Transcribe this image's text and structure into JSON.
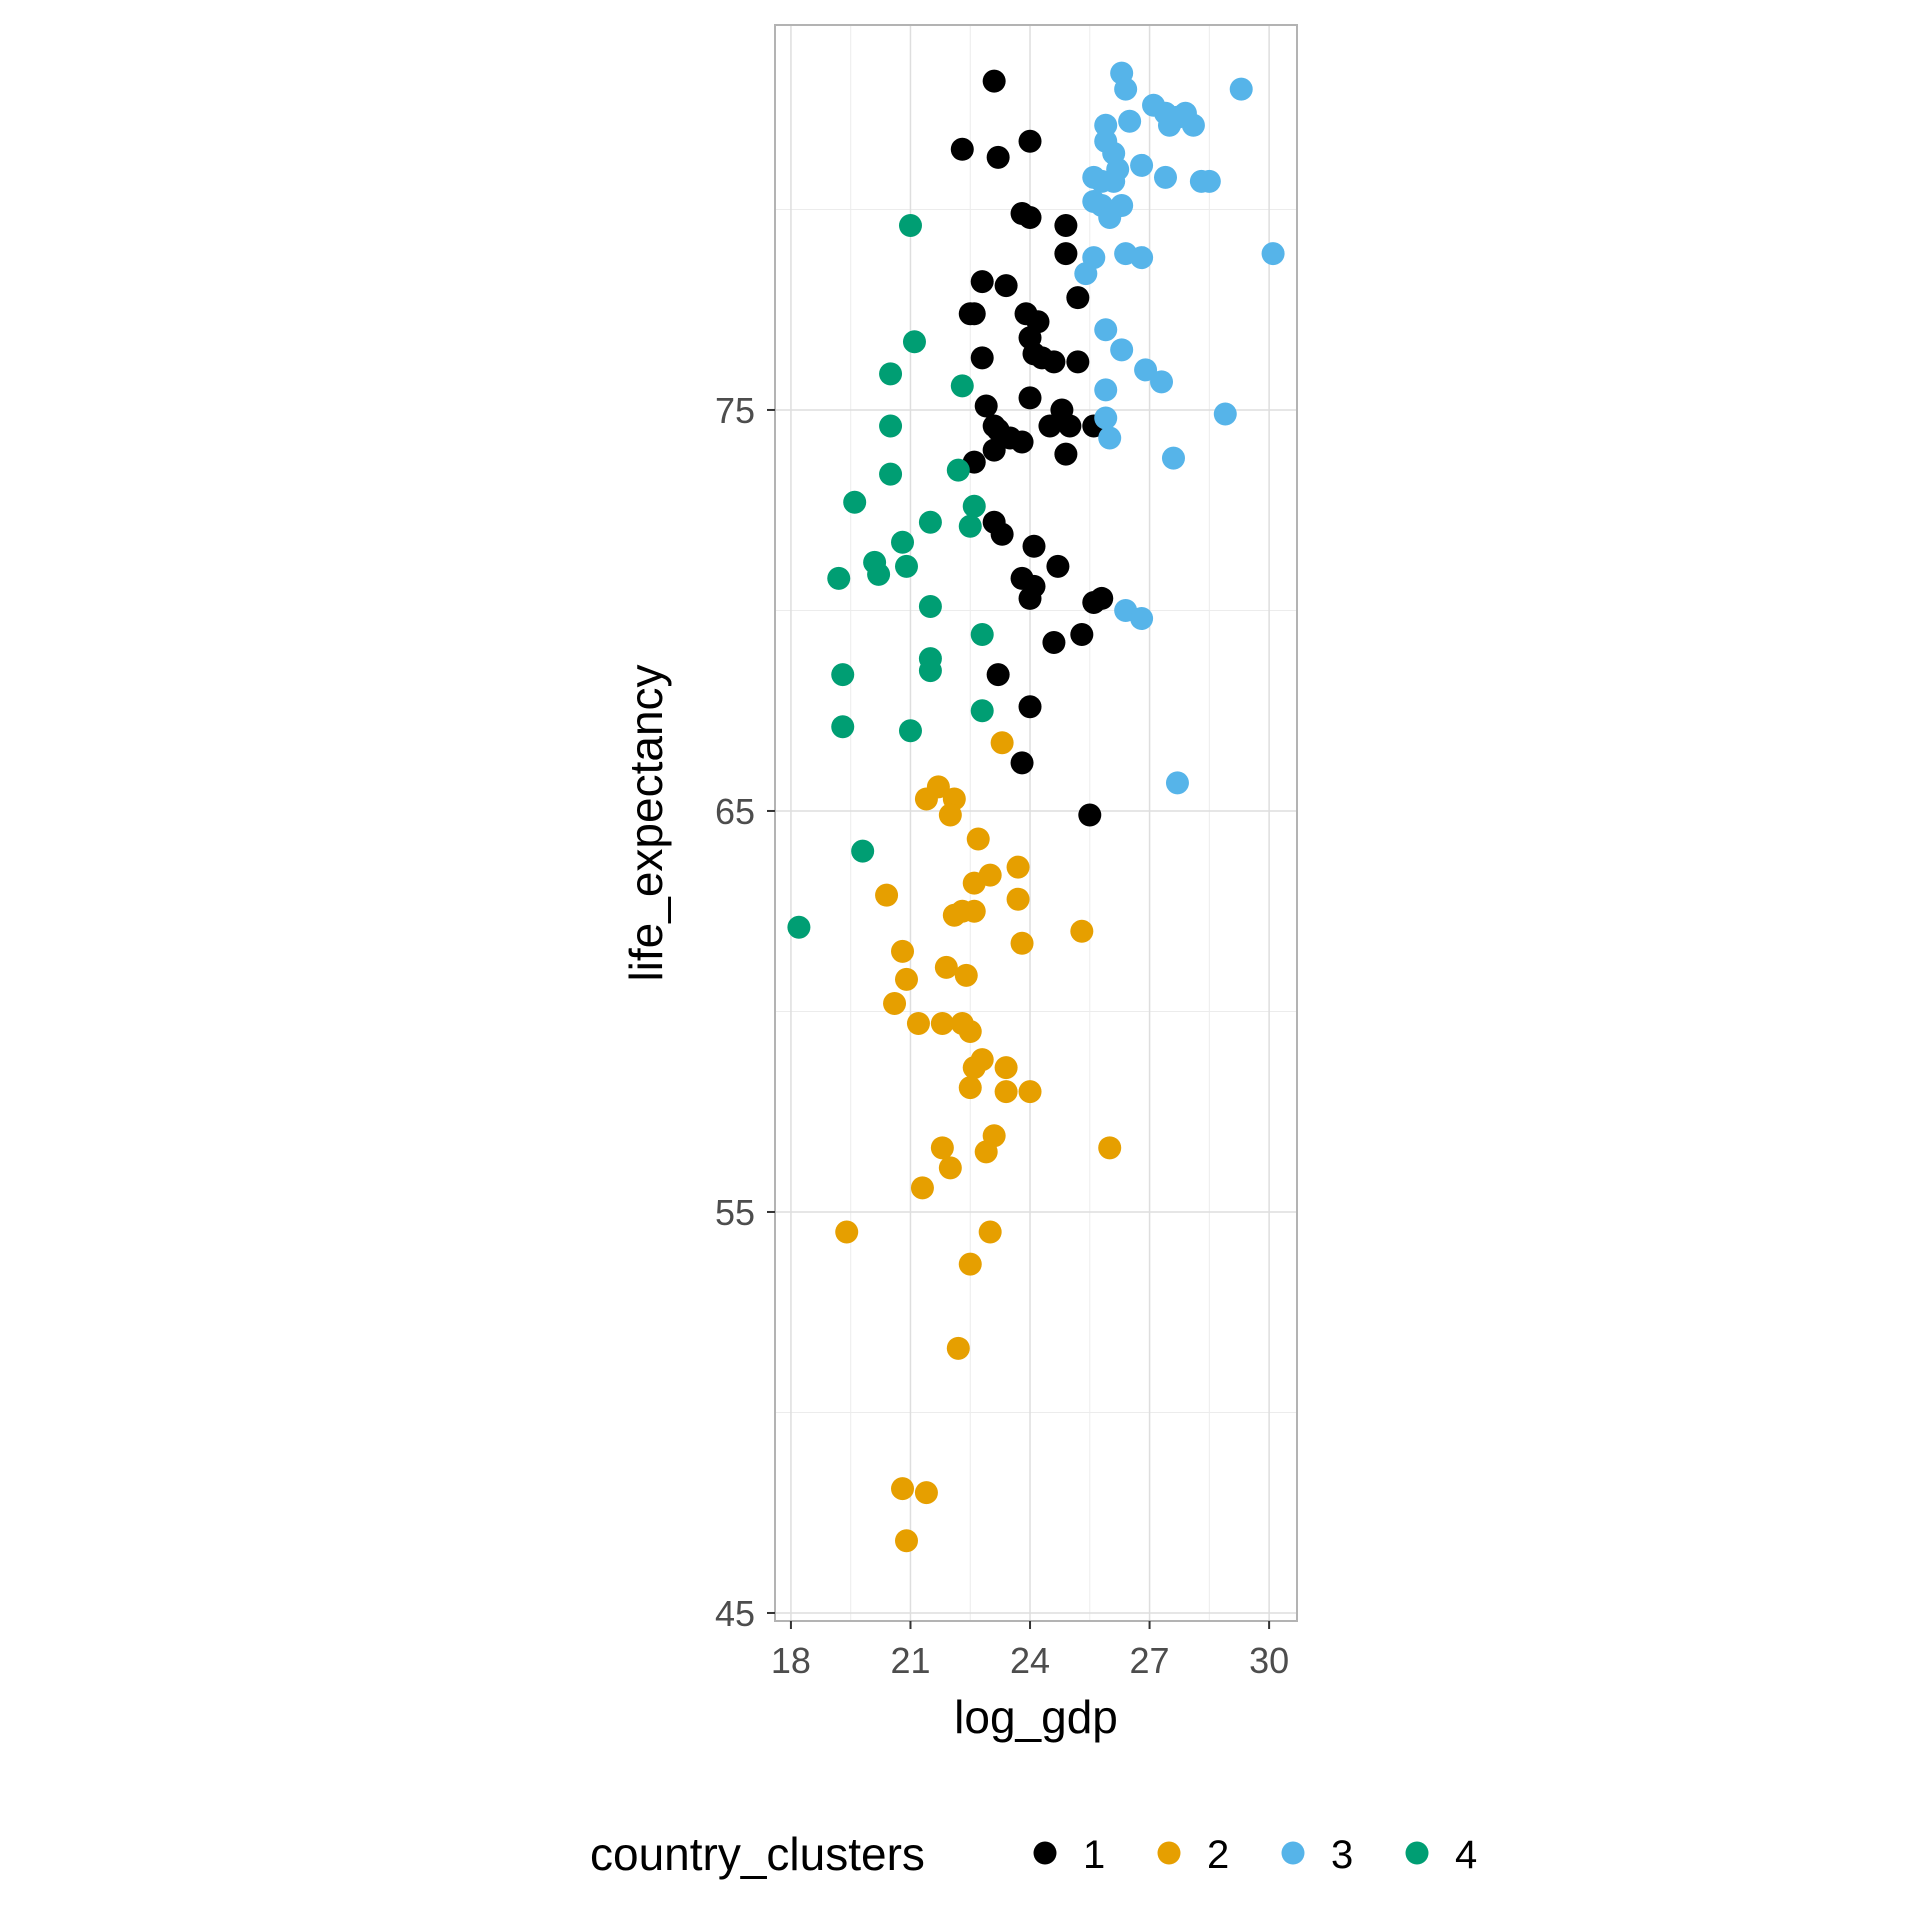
{
  "chart_data": {
    "type": "scatter",
    "title": "",
    "xlabel": "log_gdp",
    "ylabel": "life_expectancy",
    "xlim": [
      17.6,
      30.7
    ],
    "ylim": [
      44.8,
      84.6
    ],
    "x_ticks": [
      18,
      21,
      24,
      27,
      30
    ],
    "y_ticks": [
      45,
      55,
      65,
      75
    ],
    "grid": true,
    "legend": {
      "title": "country_clusters",
      "position": "bottom"
    },
    "series": [
      {
        "name": "1",
        "color": "#000000",
        "points": [
          [
            23.1,
            83.2
          ],
          [
            22.3,
            81.5
          ],
          [
            23.2,
            81.3
          ],
          [
            24.0,
            81.7
          ],
          [
            23.8,
            79.9
          ],
          [
            24.0,
            79.8
          ],
          [
            24.9,
            79.6
          ],
          [
            24.9,
            78.9
          ],
          [
            22.8,
            78.2
          ],
          [
            23.4,
            78.1
          ],
          [
            25.2,
            77.8
          ],
          [
            22.5,
            77.4
          ],
          [
            22.6,
            77.4
          ],
          [
            23.9,
            77.4
          ],
          [
            24.2,
            77.2
          ],
          [
            24.0,
            76.8
          ],
          [
            24.1,
            76.4
          ],
          [
            24.3,
            76.3
          ],
          [
            24.6,
            76.2
          ],
          [
            25.2,
            76.2
          ],
          [
            22.8,
            76.3
          ],
          [
            24.0,
            75.3
          ],
          [
            22.9,
            75.1
          ],
          [
            24.8,
            75.0
          ],
          [
            23.1,
            74.6
          ],
          [
            23.2,
            74.5
          ],
          [
            24.5,
            74.6
          ],
          [
            25.0,
            74.6
          ],
          [
            25.6,
            74.6
          ],
          [
            23.5,
            74.3
          ],
          [
            23.8,
            74.2
          ],
          [
            23.1,
            74.0
          ],
          [
            24.9,
            73.9
          ],
          [
            22.6,
            73.7
          ],
          [
            23.1,
            72.2
          ],
          [
            23.3,
            71.9
          ],
          [
            24.1,
            71.6
          ],
          [
            24.7,
            71.1
          ],
          [
            23.8,
            70.8
          ],
          [
            24.1,
            70.6
          ],
          [
            24.0,
            70.3
          ],
          [
            25.6,
            70.2
          ],
          [
            25.8,
            70.3
          ],
          [
            24.6,
            69.2
          ],
          [
            25.3,
            69.4
          ],
          [
            23.2,
            68.4
          ],
          [
            24.0,
            67.6
          ],
          [
            23.8,
            66.2
          ],
          [
            25.5,
            64.9
          ]
        ]
      },
      {
        "name": "2",
        "color": "#E69F00",
        "points": [
          [
            23.3,
            66.7
          ],
          [
            21.7,
            65.6
          ],
          [
            21.4,
            65.3
          ],
          [
            22.1,
            65.3
          ],
          [
            22.0,
            64.9
          ],
          [
            22.7,
            64.3
          ],
          [
            23.7,
            63.6
          ],
          [
            23.0,
            63.4
          ],
          [
            22.6,
            63.2
          ],
          [
            20.4,
            62.9
          ],
          [
            23.7,
            62.8
          ],
          [
            22.1,
            62.4
          ],
          [
            22.3,
            62.5
          ],
          [
            22.6,
            62.5
          ],
          [
            25.3,
            62.0
          ],
          [
            23.8,
            61.7
          ],
          [
            20.8,
            61.5
          ],
          [
            21.9,
            61.1
          ],
          [
            22.4,
            60.9
          ],
          [
            20.9,
            60.8
          ],
          [
            20.6,
            60.2
          ],
          [
            21.2,
            59.7
          ],
          [
            21.8,
            59.7
          ],
          [
            22.3,
            59.7
          ],
          [
            22.5,
            59.5
          ],
          [
            22.8,
            58.8
          ],
          [
            22.6,
            58.6
          ],
          [
            23.4,
            58.6
          ],
          [
            22.5,
            58.1
          ],
          [
            23.4,
            58.0
          ],
          [
            24.0,
            58.0
          ],
          [
            23.1,
            56.9
          ],
          [
            22.9,
            56.5
          ],
          [
            21.8,
            56.6
          ],
          [
            26.0,
            56.6
          ],
          [
            22.0,
            56.1
          ],
          [
            21.3,
            55.6
          ],
          [
            19.4,
            54.5
          ],
          [
            23.0,
            54.5
          ],
          [
            22.5,
            53.7
          ],
          [
            22.2,
            51.6
          ],
          [
            20.8,
            48.1
          ],
          [
            21.4,
            48.0
          ],
          [
            20.9,
            46.8
          ]
        ]
      },
      {
        "name": "3",
        "color": "#56B4E9",
        "points": [
          [
            26.3,
            83.4
          ],
          [
            26.4,
            83.0
          ],
          [
            29.3,
            83.0
          ],
          [
            27.1,
            82.6
          ],
          [
            27.4,
            82.4
          ],
          [
            27.7,
            82.3
          ],
          [
            27.9,
            82.4
          ],
          [
            27.5,
            82.1
          ],
          [
            28.1,
            82.1
          ],
          [
            26.5,
            82.2
          ],
          [
            25.9,
            82.1
          ],
          [
            25.9,
            81.7
          ],
          [
            26.1,
            81.4
          ],
          [
            26.8,
            81.1
          ],
          [
            26.2,
            81.0
          ],
          [
            25.6,
            80.8
          ],
          [
            25.8,
            80.7
          ],
          [
            26.1,
            80.7
          ],
          [
            27.4,
            80.8
          ],
          [
            28.3,
            80.7
          ],
          [
            28.5,
            80.7
          ],
          [
            25.6,
            80.2
          ],
          [
            25.8,
            80.1
          ],
          [
            26.3,
            80.1
          ],
          [
            26.0,
            79.8
          ],
          [
            25.6,
            78.8
          ],
          [
            25.4,
            78.4
          ],
          [
            26.4,
            78.9
          ],
          [
            26.8,
            78.8
          ],
          [
            30.1,
            78.9
          ],
          [
            25.9,
            77.0
          ],
          [
            26.3,
            76.5
          ],
          [
            26.9,
            76.0
          ],
          [
            27.3,
            75.7
          ],
          [
            25.9,
            75.5
          ],
          [
            28.9,
            74.9
          ],
          [
            25.9,
            74.8
          ],
          [
            26.0,
            74.3
          ],
          [
            27.6,
            73.8
          ],
          [
            26.4,
            70.0
          ],
          [
            26.8,
            69.8
          ],
          [
            27.7,
            65.7
          ]
        ]
      },
      {
        "name": "4",
        "color": "#009E73",
        "points": [
          [
            21.0,
            79.6
          ],
          [
            21.1,
            76.7
          ],
          [
            20.5,
            75.9
          ],
          [
            22.3,
            75.6
          ],
          [
            20.5,
            74.6
          ],
          [
            20.5,
            73.4
          ],
          [
            22.2,
            73.5
          ],
          [
            19.6,
            72.7
          ],
          [
            22.6,
            72.6
          ],
          [
            21.5,
            72.2
          ],
          [
            22.5,
            72.1
          ],
          [
            20.8,
            71.7
          ],
          [
            20.1,
            71.2
          ],
          [
            20.9,
            71.1
          ],
          [
            20.2,
            70.9
          ],
          [
            19.2,
            70.8
          ],
          [
            21.5,
            70.1
          ],
          [
            22.8,
            69.4
          ],
          [
            21.5,
            68.8
          ],
          [
            21.5,
            68.5
          ],
          [
            19.3,
            68.4
          ],
          [
            22.8,
            67.5
          ],
          [
            19.3,
            67.1
          ],
          [
            21.0,
            67.0
          ],
          [
            19.8,
            64.0
          ],
          [
            18.2,
            62.1
          ]
        ]
      }
    ]
  }
}
